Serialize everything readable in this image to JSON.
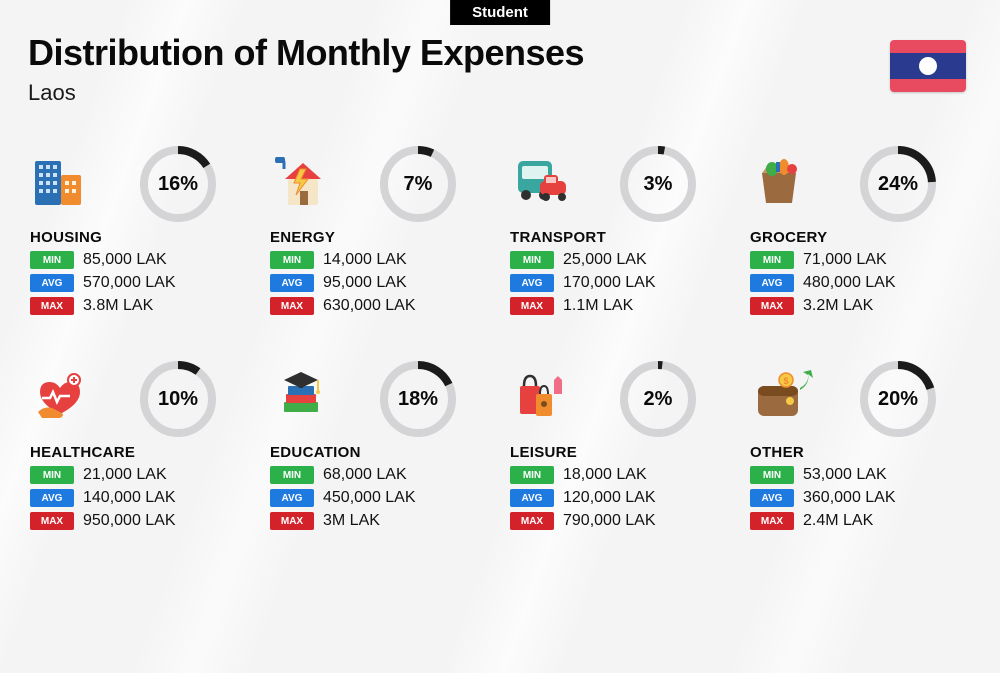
{
  "badge": "Student",
  "title": "Distribution of Monthly Expenses",
  "subtitle": "Laos",
  "flag": {
    "stripe_color": "#e84a5f",
    "middle_color": "#2a3a8f",
    "circle_color": "#ffffff"
  },
  "ring": {
    "track_color": "#d4d4d6",
    "progress_color": "#1b1b1b",
    "stroke_width": 8
  },
  "badges": {
    "min": {
      "label": "MIN",
      "bg": "#2bb04a"
    },
    "avg": {
      "label": "AVG",
      "bg": "#1f7ae0"
    },
    "max": {
      "label": "MAX",
      "bg": "#d3222a"
    }
  },
  "categories": [
    {
      "key": "housing",
      "name": "HOUSING",
      "percent": 16,
      "percent_label": "16%",
      "min": "85,000 LAK",
      "avg": "570,000 LAK",
      "max": "3.8M LAK",
      "icon": "housing"
    },
    {
      "key": "energy",
      "name": "ENERGY",
      "percent": 7,
      "percent_label": "7%",
      "min": "14,000 LAK",
      "avg": "95,000 LAK",
      "max": "630,000 LAK",
      "icon": "energy"
    },
    {
      "key": "transport",
      "name": "TRANSPORT",
      "percent": 3,
      "percent_label": "3%",
      "min": "25,000 LAK",
      "avg": "170,000 LAK",
      "max": "1.1M LAK",
      "icon": "transport"
    },
    {
      "key": "grocery",
      "name": "GROCERY",
      "percent": 24,
      "percent_label": "24%",
      "min": "71,000 LAK",
      "avg": "480,000 LAK",
      "max": "3.2M LAK",
      "icon": "grocery"
    },
    {
      "key": "healthcare",
      "name": "HEALTHCARE",
      "percent": 10,
      "percent_label": "10%",
      "min": "21,000 LAK",
      "avg": "140,000 LAK",
      "max": "950,000 LAK",
      "icon": "healthcare"
    },
    {
      "key": "education",
      "name": "EDUCATION",
      "percent": 18,
      "percent_label": "18%",
      "min": "68,000 LAK",
      "avg": "450,000 LAK",
      "max": "3M LAK",
      "icon": "education"
    },
    {
      "key": "leisure",
      "name": "LEISURE",
      "percent": 2,
      "percent_label": "2%",
      "min": "18,000 LAK",
      "avg": "120,000 LAK",
      "max": "790,000 LAK",
      "icon": "leisure"
    },
    {
      "key": "other",
      "name": "OTHER",
      "percent": 20,
      "percent_label": "20%",
      "min": "53,000 LAK",
      "avg": "360,000 LAK",
      "max": "2.4M LAK",
      "icon": "other"
    }
  ],
  "icon_colors": {
    "blue": "#2b6fb5",
    "orange": "#f08c2e",
    "yellow": "#f6c945",
    "red": "#e6413f",
    "green": "#3fae49",
    "teal": "#3aa6a0",
    "brown": "#9b6a3f",
    "navy": "#2a3d66",
    "pink": "#ef6e85",
    "dark": "#2f2f2f"
  }
}
